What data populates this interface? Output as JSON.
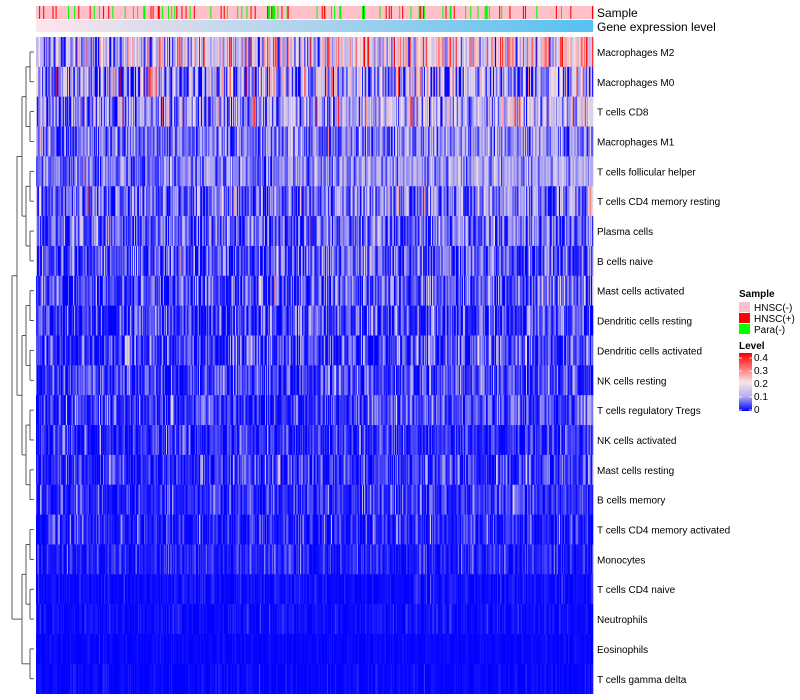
{
  "chart_data": {
    "type": "heatmap",
    "title": "",
    "annotations": [
      {
        "name": "Sample",
        "label": "Sample"
      },
      {
        "name": "Gene expression level",
        "label": "Gene expression level"
      }
    ],
    "rows": [
      {
        "label": "Macrophages M2",
        "mean": 0.16,
        "sd": 0.09
      },
      {
        "label": "Macrophages M0",
        "mean": 0.1,
        "sd": 0.1
      },
      {
        "label": "T cells CD8",
        "mean": 0.11,
        "sd": 0.07
      },
      {
        "label": "Macrophages M1",
        "mean": 0.07,
        "sd": 0.05
      },
      {
        "label": "T cells follicular helper",
        "mean": 0.08,
        "sd": 0.04
      },
      {
        "label": "T cells CD4 memory resting",
        "mean": 0.07,
        "sd": 0.06
      },
      {
        "label": "Plasma cells",
        "mean": 0.05,
        "sd": 0.05
      },
      {
        "label": "B cells naive",
        "mean": 0.04,
        "sd": 0.05
      },
      {
        "label": "Mast cells activated",
        "mean": 0.04,
        "sd": 0.05
      },
      {
        "label": "Dendritic cells resting",
        "mean": 0.03,
        "sd": 0.05
      },
      {
        "label": "Dendritic cells activated",
        "mean": 0.03,
        "sd": 0.05
      },
      {
        "label": "NK cells resting",
        "mean": 0.03,
        "sd": 0.04
      },
      {
        "label": "T cells regulatory  Tregs",
        "mean": 0.03,
        "sd": 0.04
      },
      {
        "label": "NK cells activated",
        "mean": 0.02,
        "sd": 0.03
      },
      {
        "label": "Mast cells resting",
        "mean": 0.02,
        "sd": 0.04
      },
      {
        "label": "B cells memory",
        "mean": 0.02,
        "sd": 0.03
      },
      {
        "label": "T cells CD4 memory activated",
        "mean": 0.015,
        "sd": 0.03
      },
      {
        "label": "Monocytes",
        "mean": 0.015,
        "sd": 0.02
      },
      {
        "label": "T cells CD4 naive",
        "mean": 0.005,
        "sd": 0.01
      },
      {
        "label": "Neutrophils",
        "mean": 0.005,
        "sd": 0.01
      },
      {
        "label": "Eosinophils",
        "mean": 0.002,
        "sd": 0.005
      },
      {
        "label": "T cells gamma delta",
        "mean": 0.002,
        "sd": 0.008
      }
    ],
    "n_samples": 540,
    "sample_groups": {
      "categories": [
        "HNSC(-)",
        "HNSC(+)",
        "Para(-)"
      ],
      "colors": [
        "#FFC0CB",
        "#FF0000",
        "#00FF00"
      ],
      "approx_fraction": [
        0.82,
        0.08,
        0.1
      ]
    },
    "expression_track": {
      "colors": [
        "#FFE4EC",
        "#56C1F0"
      ]
    },
    "color_scale": {
      "min": 0,
      "max": 0.4,
      "stops": [
        0,
        0.1,
        0.2,
        0.3,
        0.4
      ],
      "colors": [
        "#0000FF",
        "#B6AEF0",
        "#F6E4E4",
        "#FF6F6F",
        "#FF0000"
      ]
    },
    "legend": {
      "sample_title": "Sample",
      "level_title": "Level",
      "level_ticks": [
        "0.4",
        "0.3",
        "0.2",
        "0.1",
        "0"
      ],
      "placement": "right"
    }
  }
}
